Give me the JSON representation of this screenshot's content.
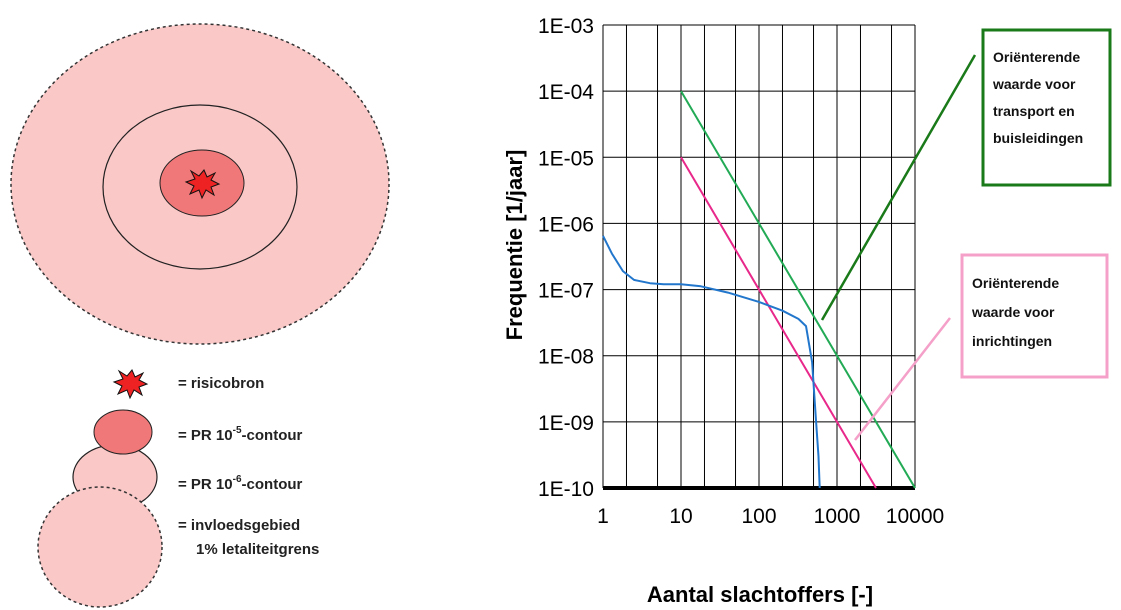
{
  "diagram": {
    "legend": {
      "source_label": "= risicobron",
      "pr5_prefix": "= PR 10",
      "pr5_exp": "-5",
      "pr5_suffix": "-contour",
      "pr6_prefix": "= PR 10",
      "pr6_exp": "-6",
      "pr6_suffix": "-contour",
      "influence_line1": "= invloedsgebied",
      "influence_line2": "1% letaliteitgrens"
    },
    "colors": {
      "influence_fill": "#fbc8c8",
      "pr5_fill": "#f07878",
      "source_fill": "#ee2222",
      "outline": "#333333"
    },
    "icons": [
      "explosion-icon"
    ]
  },
  "chart_data": {
    "type": "line",
    "xscale": "log",
    "yscale": "log",
    "xlabel": "Aantal slachtoffers [-]",
    "ylabel": "Frequentie [1/jaar]",
    "xlim": [
      1,
      10000
    ],
    "ylim": [
      1e-10,
      0.001
    ],
    "grid": true,
    "x_tick_labels": [
      "1",
      "10",
      "100",
      "1000",
      "10000"
    ],
    "y_tick_labels": [
      "1E-03",
      "1E-04",
      "1E-05",
      "1E-06",
      "1E-07",
      "1E-08",
      "1E-09",
      "1E-10"
    ],
    "series": [
      {
        "color": "#22aa55",
        "x": [
          10,
          10000
        ],
        "y": [
          0.0001,
          1e-10
        ]
      },
      {
        "color": "#e8288a",
        "x": [
          10,
          3162
        ],
        "y": [
          1e-05,
          1e-10
        ]
      },
      {
        "color": "#2277cc",
        "x": [
          1,
          1.3,
          1.8,
          2.5,
          4,
          6,
          10,
          18,
          40,
          100,
          200,
          320,
          400,
          480,
          540,
          580,
          600
        ],
        "y": [
          6.5e-07,
          3.5e-07,
          1.9e-07,
          1.4e-07,
          1.25e-07,
          1.2e-07,
          1.2e-07,
          1.12e-07,
          9e-08,
          6.5e-08,
          4.8e-08,
          3.6e-08,
          2.8e-08,
          8e-09,
          1e-09,
          3e-10,
          1e-10
        ]
      }
    ],
    "annotations": [
      {
        "lines": [
          "Oriënterende",
          "waarde voor",
          "transport en",
          "buisleidingen"
        ],
        "color": "#1a7a1a"
      },
      {
        "lines": [
          "Oriënterende",
          "waarde voor",
          "inrichtingen"
        ],
        "color": "#f4a0c8"
      }
    ]
  }
}
